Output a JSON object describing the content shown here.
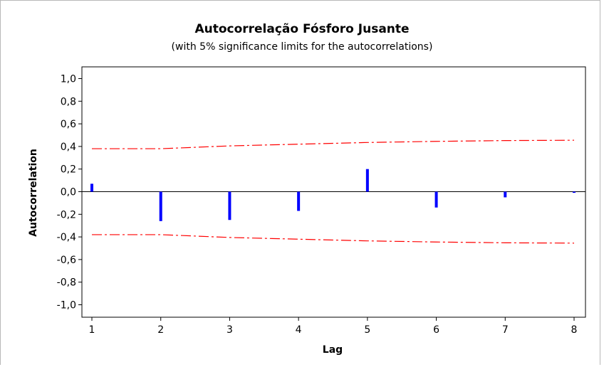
{
  "chart_data": {
    "type": "bar",
    "title": "Autocorrelação Fósforo Jusante",
    "subtitle": "(with 5% significance limits for the autocorrelations)",
    "xlabel": "Lag",
    "ylabel": "Autocorrelation",
    "xlim": [
      1,
      8
    ],
    "ylim": [
      -1.0,
      1.0
    ],
    "x_ticks": [
      1,
      2,
      3,
      4,
      5,
      6,
      7,
      8
    ],
    "y_ticks": [
      -1.0,
      -0.8,
      -0.6,
      -0.4,
      -0.2,
      0.0,
      0.2,
      0.4,
      0.6,
      0.8,
      1.0
    ],
    "y_tick_labels": [
      "-1,0",
      "-0,8",
      "-0,6",
      "-0,4",
      "-0,2",
      "0,0",
      "0,2",
      "0,4",
      "0,6",
      "0,8",
      "1,0"
    ],
    "grid": false,
    "series": [
      {
        "lags": [
          1,
          2,
          3,
          4,
          5,
          6,
          7,
          8
        ],
        "values": [
          0.07,
          -0.26,
          -0.25,
          -0.17,
          0.2,
          -0.14,
          -0.05,
          -0.01
        ],
        "color": "#0000ff"
      }
    ],
    "significance_limits": {
      "lags": [
        1,
        2,
        3,
        4,
        5,
        6,
        7,
        8
      ],
      "upper": [
        0.38,
        0.38,
        0.405,
        0.42,
        0.435,
        0.445,
        0.452,
        0.455
      ],
      "lower": [
        -0.38,
        -0.38,
        -0.405,
        -0.42,
        -0.435,
        -0.445,
        -0.452,
        -0.455
      ],
      "color": "#ff0000",
      "style": "dash-dot"
    }
  }
}
